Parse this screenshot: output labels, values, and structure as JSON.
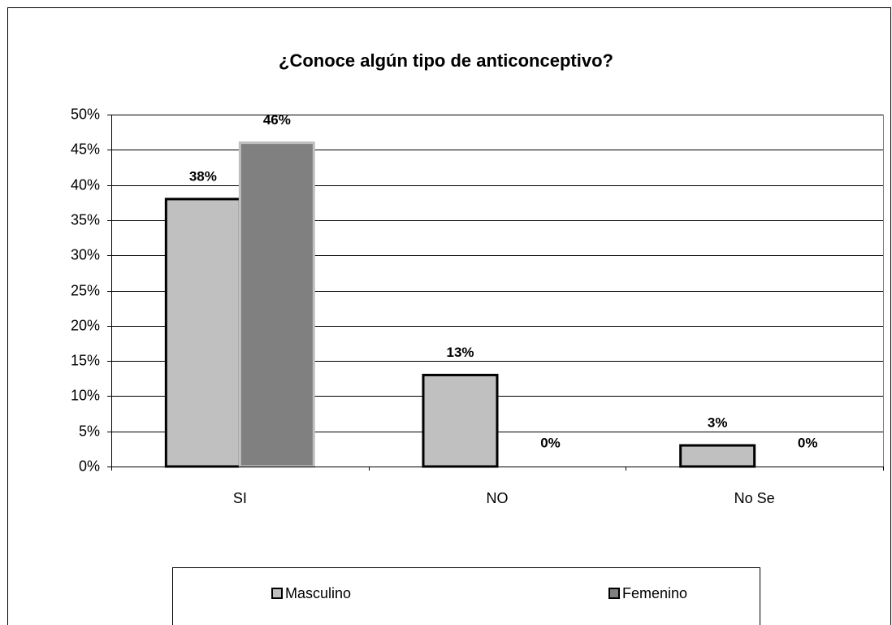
{
  "chart_data": {
    "type": "bar",
    "title": "¿Conoce algún tipo de anticonceptivo?",
    "categories": [
      "SI",
      "NO",
      "No Se"
    ],
    "series": [
      {
        "name": "Masculino",
        "color": "#c0c0c0",
        "values": [
          38,
          13,
          3
        ],
        "value_labels": [
          "38%",
          "13%",
          "3%"
        ]
      },
      {
        "name": "Femenino",
        "color": "#808080",
        "values": [
          46,
          0,
          0
        ],
        "value_labels": [
          "46%",
          "0%",
          "0%"
        ]
      }
    ],
    "ylim": [
      0,
      50
    ],
    "yticks": [
      {
        "value": 0,
        "label": "0%"
      },
      {
        "value": 5,
        "label": "5%"
      },
      {
        "value": 10,
        "label": "10%"
      },
      {
        "value": 15,
        "label": "15%"
      },
      {
        "value": 20,
        "label": "20%"
      },
      {
        "value": 25,
        "label": "25%"
      },
      {
        "value": 30,
        "label": "30%"
      },
      {
        "value": 35,
        "label": "35%"
      },
      {
        "value": 40,
        "label": "40%"
      },
      {
        "value": 45,
        "label": "45%"
      },
      {
        "value": 50,
        "label": "50%"
      }
    ],
    "grid": true,
    "legend": "bottom"
  }
}
